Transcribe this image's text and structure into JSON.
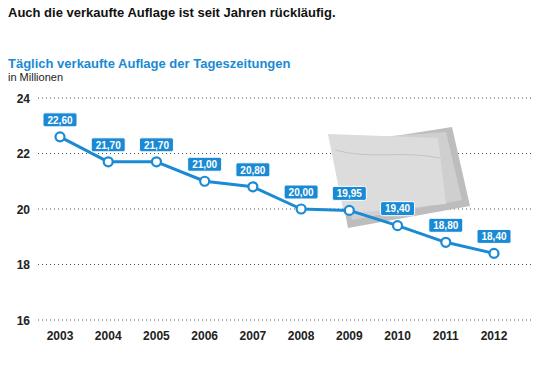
{
  "chart_data": {
    "type": "line",
    "headline": "Auch die verkaufte Auflage ist seit Jahren rückläufig.",
    "title": "Täglich verkaufte Auflage der Tageszeitungen",
    "subtitle": "in Millionen",
    "categories": [
      "2003",
      "2004",
      "2005",
      "2006",
      "2007",
      "2008",
      "2009",
      "2010",
      "2011",
      "2012"
    ],
    "values": [
      22.6,
      21.7,
      21.7,
      21.0,
      20.8,
      20.0,
      19.95,
      19.4,
      18.8,
      18.4
    ],
    "value_labels": [
      "22,60",
      "21,70",
      "21,70",
      "21,00",
      "20,80",
      "20,00",
      "19,95",
      "19,40",
      "18,80",
      "18,40"
    ],
    "color": "#1a8ad4",
    "marker": "circle",
    "ylim": [
      16,
      24
    ],
    "yticks": [
      16,
      18,
      20,
      22,
      24
    ],
    "grid": true,
    "data_labels": true
  }
}
